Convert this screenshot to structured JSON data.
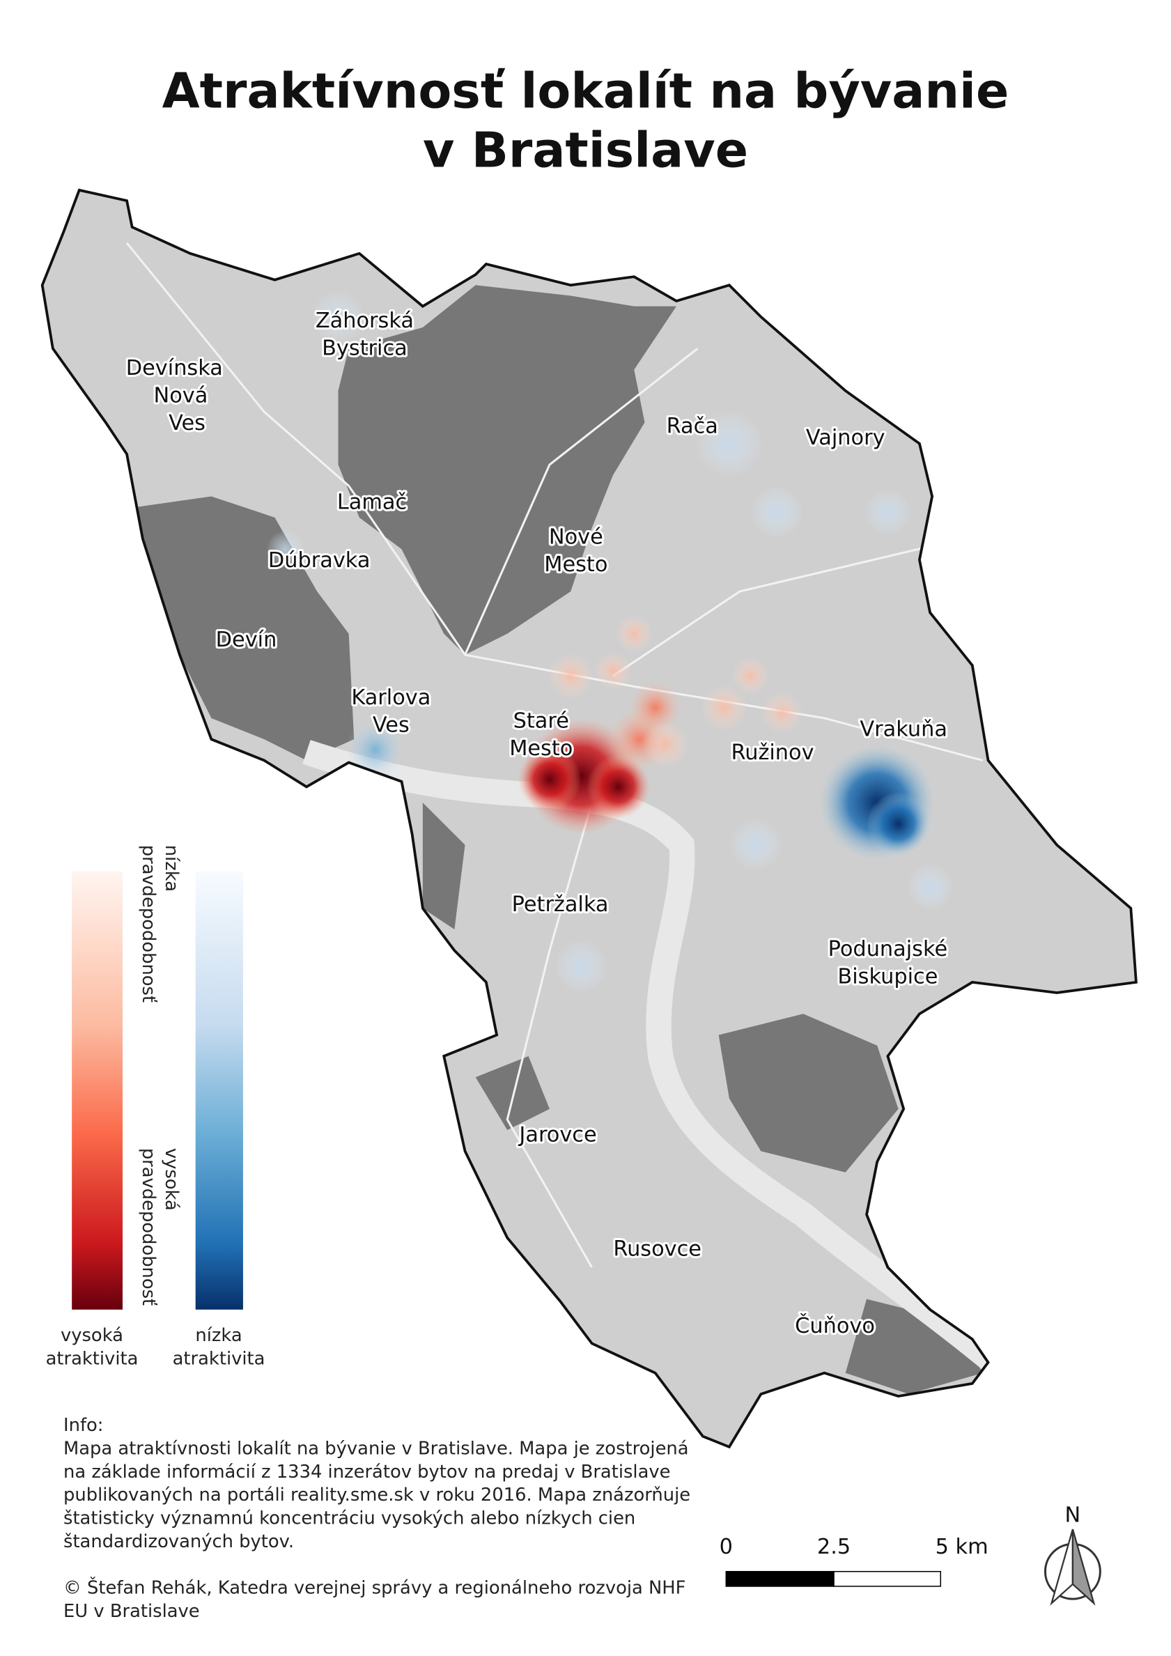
{
  "title": [
    "Atraktívnosť lokalít na bývanie",
    "v Bratislave"
  ],
  "districts": [
    [
      "Záhorská",
      "Bystrica"
    ],
    [
      "Devínska",
      "Nová",
      "Ves"
    ],
    [
      "Rača"
    ],
    [
      "Vajnory"
    ],
    [
      "Lamač"
    ],
    [
      "Nové",
      "Mesto"
    ],
    [
      "Dúbravka"
    ],
    [
      "Devín"
    ],
    [
      "Karlova",
      "Ves"
    ],
    [
      "Staré",
      "Mesto"
    ],
    [
      "Ružinov"
    ],
    [
      "Vrakuňa"
    ],
    [
      "Petržalka"
    ],
    [
      "Podunajské",
      "Biskupice"
    ],
    [
      "Jarovce"
    ],
    [
      "Rusovce"
    ],
    [
      "Čuňovo"
    ]
  ],
  "legend": {
    "red_top": [
      "nízka",
      "pravdepodobnosť"
    ],
    "red_bottom": [
      "vysoká",
      "pravdepodobnosť"
    ],
    "red_label": [
      "vysoká",
      "atraktivita"
    ],
    "blue_label": [
      "nízka",
      "atraktivita"
    ]
  },
  "info": [
    "Info:",
    "Mapa atraktívnosti lokalít na bývanie v Bratislave. Mapa je zostrojená",
    "na základe informácií z 1334 inzerátov bytov na predaj v Bratislave",
    "publikovaných na portáli reality.sme.sk v roku 2016. Mapa znázorňuje",
    "štatisticky významnú koncentráciu vysokých alebo nízkych cien",
    "štandardizovaných bytov.",
    "",
    "© Štefan Rehák, Katedra verejnej správy a regionálneho rozvoja NHF",
    "EU v Bratislave"
  ],
  "scale_bar": [
    "0",
    "2.5",
    "5 km"
  ],
  "north": "N"
}
